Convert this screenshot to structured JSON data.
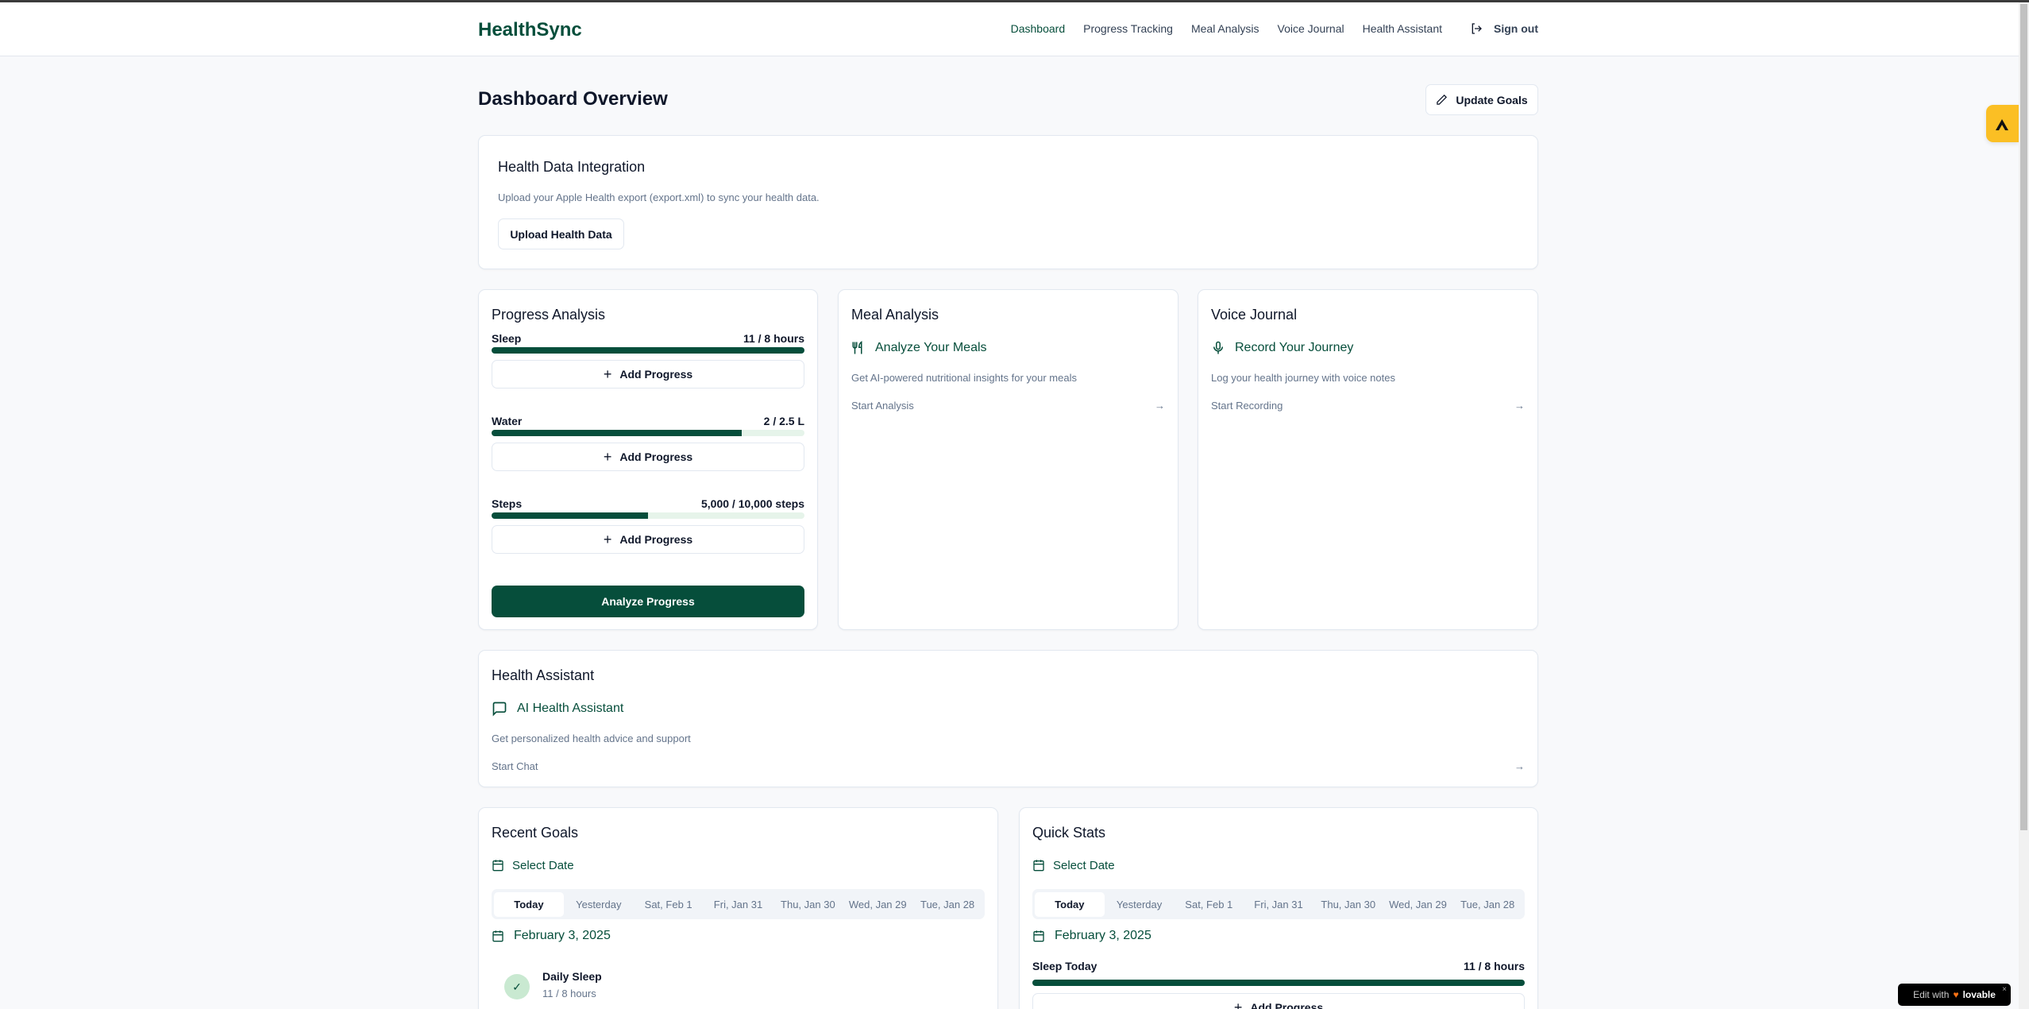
{
  "header": {
    "logo": "HealthSync",
    "nav": [
      "Dashboard",
      "Progress Tracking",
      "Meal Analysis",
      "Voice Journal",
      "Health Assistant"
    ],
    "active": "Dashboard",
    "sign_out": "Sign out"
  },
  "page": {
    "title": "Dashboard Overview",
    "update_goals": "Update Goals"
  },
  "integration": {
    "title": "Health Data Integration",
    "description": "Upload your Apple Health export (export.xml) to sync your health data.",
    "button": "Upload Health Data"
  },
  "progress": {
    "title": "Progress Analysis",
    "add_label": "Add Progress",
    "analyze": "Analyze Progress",
    "items": [
      {
        "label": "Sleep",
        "value": "11 / 8 hours",
        "percent": 100
      },
      {
        "label": "Water",
        "value": "2 / 2.5 L",
        "percent": 80
      },
      {
        "label": "Steps",
        "value": "5,000 / 10,000 steps",
        "percent": 50
      }
    ]
  },
  "meal": {
    "title": "Meal Analysis",
    "subtitle": "Analyze Your Meals",
    "description": "Get AI-powered nutritional insights for your meals",
    "link": "Start Analysis"
  },
  "voice": {
    "title": "Voice Journal",
    "subtitle": "Record Your Journey",
    "description": "Log your health journey with voice notes",
    "link": "Start Recording"
  },
  "assistant": {
    "title": "Health Assistant",
    "subtitle": "AI Health Assistant",
    "description": "Get personalized health advice and support",
    "link": "Start Chat"
  },
  "date_tabs": [
    "Today",
    "Yesterday",
    "Sat, Feb 1",
    "Fri, Jan 31",
    "Thu, Jan 30",
    "Wed, Jan 29",
    "Tue, Jan 28"
  ],
  "recent_goals": {
    "title": "Recent Goals",
    "select_date": "Select Date",
    "date": "February 3, 2025",
    "goal": {
      "name": "Daily Sleep",
      "value": "11 / 8 hours"
    }
  },
  "quick_stats": {
    "title": "Quick Stats",
    "select_date": "Select Date",
    "date": "February 3, 2025",
    "stat": {
      "label": "Sleep Today",
      "value": "11 / 8 hours",
      "percent": 100
    },
    "add_label": "Add Progress"
  },
  "badge": {
    "text": "Edit with",
    "brand": "lovable"
  },
  "colors": {
    "primary": "#064e3b",
    "accent_tab": "#fbbf24"
  }
}
